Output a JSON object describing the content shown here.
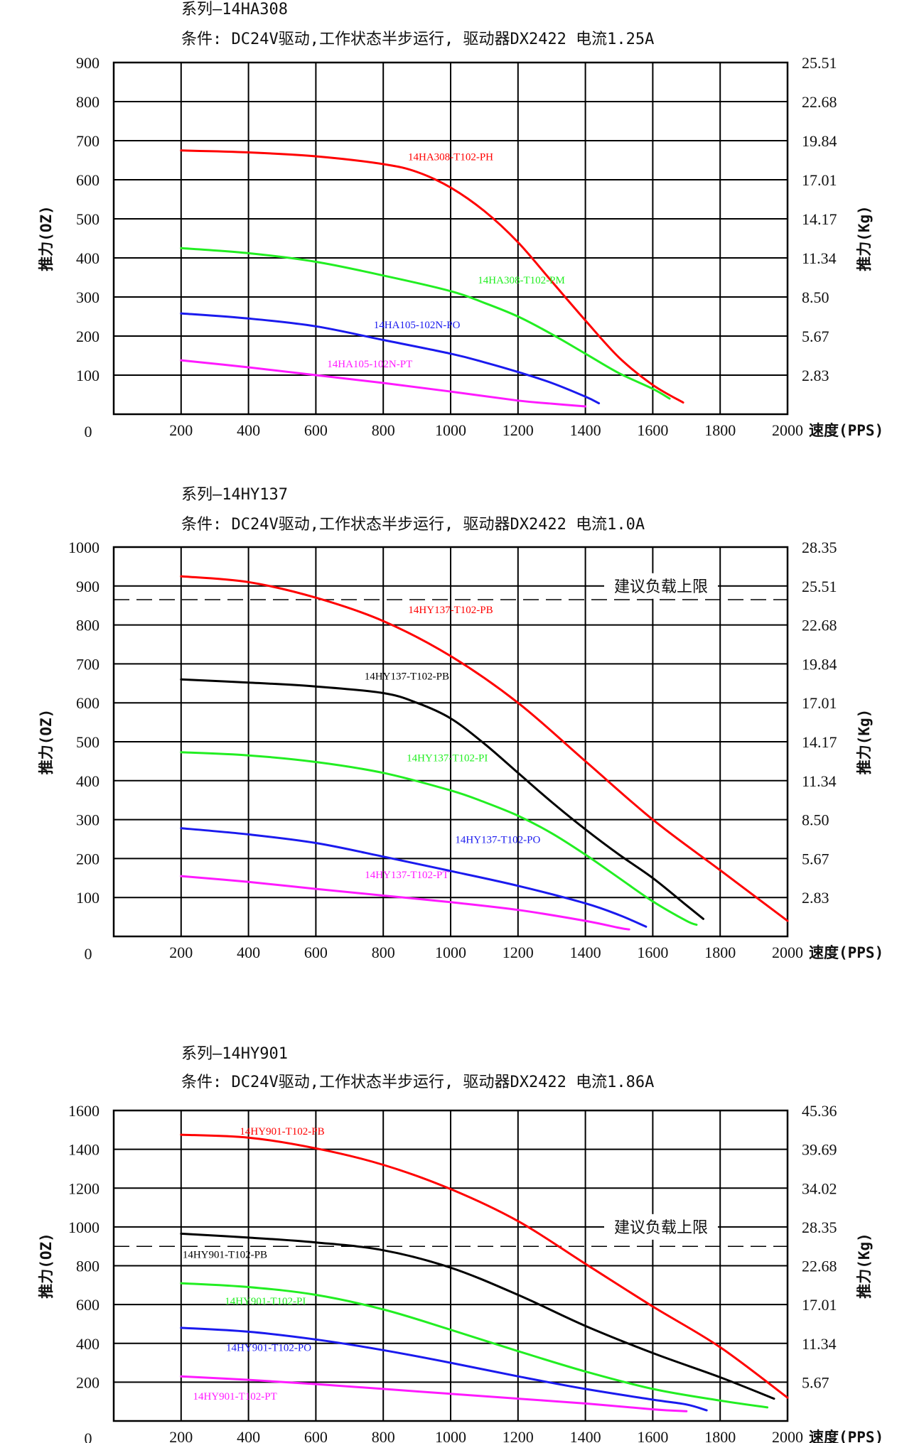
{
  "chart_data": [
    {
      "type": "line",
      "title": "系列—14HA308",
      "subtitle": "条件: DC24V驱动,工作状态半步运行, 驱动器DX2422 电流1.25A",
      "ylabel": "推力(OZ)",
      "y2label": "推力(Kg)",
      "xlabel": "速度(PPS)",
      "xlim": [
        0,
        2000
      ],
      "ylim": [
        0,
        900
      ],
      "x_ticks": [
        "200",
        "400",
        "600",
        "800",
        "1000",
        "1200",
        "1400",
        "1600",
        "1800",
        "2000"
      ],
      "y_ticks": [
        "100",
        "200",
        "300",
        "400",
        "500",
        "600",
        "700",
        "800",
        "900"
      ],
      "y2_ticks": [
        "2.83",
        "5.67",
        "8.50",
        "11.34",
        "14.17",
        "17.01",
        "19.84",
        "22.68",
        "25.51"
      ],
      "origin_label": "0",
      "grid": true,
      "series": [
        {
          "name": "14HA308-T102-PH",
          "color": "#ff0000",
          "x": [
            200,
            400,
            600,
            800,
            900,
            1000,
            1100,
            1200,
            1300,
            1400,
            1500,
            1600,
            1690
          ],
          "y": [
            675,
            670,
            660,
            640,
            620,
            580,
            520,
            440,
            340,
            240,
            145,
            75,
            30
          ],
          "label_at": [
            1000,
            650
          ]
        },
        {
          "name": "14HA308-T102-PM",
          "color": "#22ee22",
          "x": [
            200,
            400,
            600,
            800,
            1000,
            1100,
            1200,
            1300,
            1400,
            1500,
            1600,
            1650
          ],
          "y": [
            425,
            412,
            390,
            355,
            315,
            285,
            250,
            205,
            155,
            105,
            65,
            40
          ],
          "label_at": [
            1210,
            335
          ]
        },
        {
          "name": "14HA105-102N-PO",
          "color": "#1a1aee",
          "x": [
            200,
            400,
            600,
            800,
            1000,
            1100,
            1200,
            1300,
            1400,
            1440
          ],
          "y": [
            258,
            245,
            225,
            190,
            155,
            133,
            108,
            80,
            45,
            28
          ],
          "label_at": [
            900,
            220
          ]
        },
        {
          "name": "14HA105-102N-PT",
          "color": "#ff1aff",
          "x": [
            200,
            400,
            600,
            800,
            1000,
            1200,
            1300,
            1400
          ],
          "y": [
            138,
            120,
            100,
            80,
            58,
            35,
            27,
            20
          ],
          "label_at": [
            760,
            120
          ]
        }
      ]
    },
    {
      "type": "line",
      "title": "系列—14HY137",
      "subtitle": "条件: DC24V驱动,工作状态半步运行, 驱动器DX2422 电流1.0A",
      "ylabel": "推力(OZ)",
      "y2label": "推力(Kg)",
      "xlabel": "速度(PPS)",
      "xlim": [
        0,
        2000
      ],
      "ylim": [
        0,
        1000
      ],
      "x_ticks": [
        "200",
        "400",
        "600",
        "800",
        "1000",
        "1200",
        "1400",
        "1600",
        "1800",
        "2000"
      ],
      "y_ticks": [
        "100",
        "200",
        "300",
        "400",
        "500",
        "600",
        "700",
        "800",
        "900",
        "1000"
      ],
      "y2_ticks": [
        "2.83",
        "5.67",
        "8.50",
        "11.34",
        "14.17",
        "17.01",
        "19.84",
        "22.68",
        "25.51",
        "28.35"
      ],
      "origin_label": "0",
      "grid": true,
      "limit_line": {
        "y": 865,
        "label": "建议负载上限"
      },
      "series": [
        {
          "name": "14HY137-T102-PB",
          "color": "#ff0000",
          "x": [
            200,
            400,
            600,
            800,
            1000,
            1200,
            1400,
            1600,
            1800,
            2000
          ],
          "y": [
            925,
            910,
            870,
            810,
            720,
            600,
            450,
            300,
            170,
            40
          ],
          "label_at": [
            1000,
            830
          ]
        },
        {
          "name": "14HY137-T102-PB",
          "color": "#000000",
          "x": [
            200,
            400,
            600,
            800,
            900,
            1000,
            1100,
            1200,
            1300,
            1400,
            1500,
            1600,
            1700,
            1750
          ],
          "y": [
            660,
            652,
            642,
            625,
            600,
            560,
            495,
            420,
            345,
            275,
            210,
            150,
            80,
            45
          ],
          "label_at": [
            870,
            660
          ]
        },
        {
          "name": "14HY137-T102-PI",
          "color": "#22ee22",
          "x": [
            200,
            400,
            600,
            800,
            1000,
            1100,
            1200,
            1300,
            1400,
            1500,
            1600,
            1700,
            1730
          ],
          "y": [
            473,
            465,
            448,
            420,
            375,
            345,
            310,
            265,
            210,
            150,
            90,
            40,
            30
          ],
          "label_at": [
            990,
            450
          ]
        },
        {
          "name": "14HY137-T102-PO",
          "color": "#1a1aee",
          "x": [
            200,
            400,
            600,
            800,
            1000,
            1200,
            1400,
            1500,
            1580
          ],
          "y": [
            278,
            262,
            240,
            205,
            168,
            130,
            85,
            55,
            25
          ],
          "label_at": [
            1140,
            240
          ]
        },
        {
          "name": "14HY137-T102-PT",
          "color": "#ff1aff",
          "x": [
            200,
            400,
            600,
            800,
            1000,
            1200,
            1400,
            1500,
            1530
          ],
          "y": [
            155,
            140,
            122,
            105,
            88,
            68,
            40,
            22,
            18
          ],
          "label_at": [
            870,
            150
          ]
        }
      ]
    },
    {
      "type": "line",
      "title": "系列—14HY901",
      "subtitle": "条件: DC24V驱动,工作状态半步运行, 驱动器DX2422 电流1.86A",
      "ylabel": "推力(OZ)",
      "y2label": "推力(Kg)",
      "xlabel": "速度(PPS)",
      "xlim": [
        0,
        2000
      ],
      "ylim": [
        0,
        1600
      ],
      "x_ticks": [
        "200",
        "400",
        "600",
        "800",
        "1000",
        "1200",
        "1400",
        "1600",
        "1800",
        "2000"
      ],
      "y_ticks": [
        "200",
        "400",
        "600",
        "800",
        "1000",
        "1200",
        "1400",
        "1600"
      ],
      "y2_ticks": [
        "5.67",
        "11.34",
        "17.01",
        "22.68",
        "28.35",
        "34.02",
        "39.69",
        "45.36"
      ],
      "origin_label": "0",
      "grid": true,
      "limit_line": {
        "y": 900,
        "label": "建议负载上限"
      },
      "series": [
        {
          "name": "14HY901-T102-PB",
          "color": "#ff0000",
          "x": [
            200,
            400,
            600,
            800,
            1000,
            1200,
            1400,
            1600,
            1800,
            2000
          ],
          "y": [
            1475,
            1460,
            1405,
            1320,
            1195,
            1030,
            810,
            590,
            380,
            120
          ],
          "label_at": [
            500,
            1475
          ]
        },
        {
          "name": "14HY901-T102-PB",
          "color": "#000000",
          "x": [
            200,
            400,
            600,
            800,
            1000,
            1200,
            1400,
            1600,
            1800,
            1960
          ],
          "y": [
            965,
            945,
            920,
            880,
            790,
            650,
            490,
            350,
            225,
            115
          ],
          "label_at": [
            330,
            840
          ]
        },
        {
          "name": "14HY901-T102-PI",
          "color": "#22ee22",
          "x": [
            200,
            400,
            600,
            800,
            1000,
            1200,
            1400,
            1600,
            1800,
            1940
          ],
          "y": [
            710,
            690,
            650,
            575,
            470,
            360,
            255,
            165,
            105,
            70
          ],
          "label_at": [
            450,
            600
          ]
        },
        {
          "name": "14HY901-T102-PO",
          "color": "#1a1aee",
          "x": [
            200,
            400,
            600,
            800,
            1000,
            1200,
            1400,
            1600,
            1700,
            1760
          ],
          "y": [
            480,
            460,
            420,
            365,
            300,
            230,
            165,
            110,
            85,
            55
          ],
          "label_at": [
            460,
            360
          ]
        },
        {
          "name": "14HY901-T102-PT",
          "color": "#ff1aff",
          "x": [
            200,
            400,
            600,
            800,
            1000,
            1200,
            1400,
            1600,
            1700
          ],
          "y": [
            230,
            212,
            190,
            165,
            140,
            115,
            90,
            60,
            50
          ],
          "label_at": [
            360,
            110
          ]
        }
      ]
    }
  ]
}
